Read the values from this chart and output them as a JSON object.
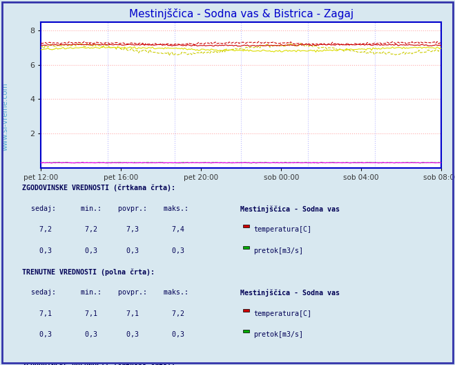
{
  "title_display": "Mestinjščica - Sodna vas & Bistrica - Zagaj",
  "bg_color": "#d8e8f0",
  "plot_bg_color": "#ffffff",
  "border_color": "#0000cc",
  "ylim": [
    0,
    8.5
  ],
  "yticks": [
    2,
    4,
    6,
    8
  ],
  "xtick_labels": [
    "pet 12:00",
    "pet 16:00",
    "pet 20:00",
    "sob 00:00",
    "sob 04:00",
    "sob 08:00"
  ],
  "num_points": 288,
  "watermark": "www.si-vreme.com",
  "sodna_temp_hist_color": "#cc0000",
  "sodna_temp_curr_color": "#cc0000",
  "sodna_flow_hist_color": "#00aa00",
  "sodna_flow_curr_color": "#00aa00",
  "zagaj_temp_hist_color": "#cccc00",
  "zagaj_temp_curr_color": "#dddd00",
  "zagaj_flow_hist_color": "#ff00ff",
  "zagaj_flow_curr_color": "#ff00ff"
}
